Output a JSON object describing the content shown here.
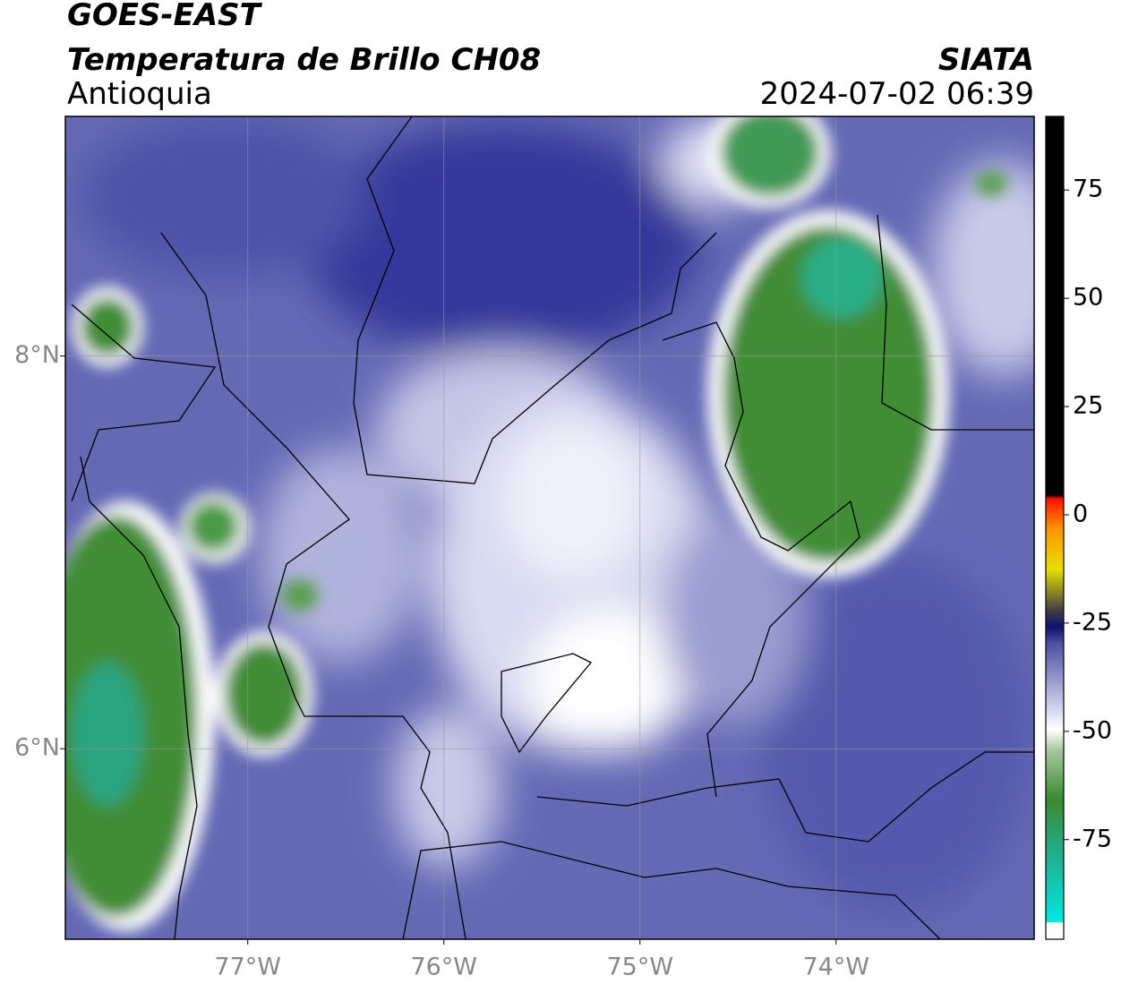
{
  "header": {
    "title": "GOES-EAST",
    "subtitle": "Temperatura de Brillo CH08",
    "region": "Antioquia",
    "source": "SIATA",
    "datetime": "2024-07-02 06:39"
  },
  "map": {
    "xlim": [
      -77.93,
      -72.99
    ],
    "ylim": [
      5.03,
      9.22
    ],
    "grid": true,
    "xticks": [
      {
        "value": -77,
        "label": "77°W"
      },
      {
        "value": -76,
        "label": "76°W"
      },
      {
        "value": -75,
        "label": "75°W"
      },
      {
        "value": -74,
        "label": "74°W"
      }
    ],
    "yticks": [
      {
        "value": 8,
        "label": "8°N"
      },
      {
        "value": 6,
        "label": "6°N"
      }
    ]
  },
  "colorbar": {
    "lim": [
      -98,
      92
    ],
    "ticks": [
      75,
      50,
      25,
      0,
      -25,
      -50,
      -75
    ]
  }
}
